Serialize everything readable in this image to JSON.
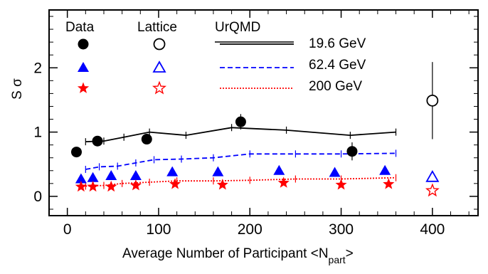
{
  "chart_data": {
    "type": "scatter",
    "title": "",
    "xlabel": "Average Number of Participant <N",
    "xlabel_sub": "part",
    "xlabel_end": ">",
    "ylabel": "S σ",
    "xlim": [
      -20,
      450
    ],
    "ylim": [
      -0.3,
      2.9
    ],
    "x_ticks": [
      0,
      100,
      200,
      300,
      400
    ],
    "y_ticks": [
      0,
      1,
      2
    ],
    "legend": {
      "placement": "top-left",
      "headers": {
        "data": "Data",
        "lattice": "Lattice",
        "urqmd": "UrQMD"
      },
      "energies": [
        "19.6 GeV",
        "62.4 GeV",
        "200 GeV"
      ]
    },
    "colors": {
      "e19": "#000000",
      "e62": "#0000ff",
      "e200": "#ff0000"
    },
    "series": [
      {
        "name": "19.6 GeV",
        "kind": "data",
        "marker": "circle",
        "x": [
          10,
          33,
          87,
          190,
          312
        ],
        "y": [
          0.69,
          0.86,
          0.89,
          1.16,
          0.7
        ],
        "err": [
          0.05,
          0.04,
          0.05,
          0.12,
          0.14
        ]
      },
      {
        "name": "62.4 GeV",
        "kind": "data",
        "marker": "triangle",
        "x": [
          15,
          28,
          48,
          75,
          115,
          165,
          232,
          293,
          348
        ],
        "y": [
          0.27,
          0.29,
          0.32,
          0.32,
          0.38,
          0.38,
          0.4,
          0.37,
          0.4
        ],
        "err": [
          0.02,
          0.02,
          0.02,
          0.02,
          0.02,
          0.02,
          0.03,
          0.03,
          0.05
        ]
      },
      {
        "name": "200 GeV",
        "kind": "data",
        "marker": "star",
        "x": [
          15,
          28,
          48,
          75,
          118,
          170,
          237,
          300,
          352
        ],
        "y": [
          0.15,
          0.15,
          0.15,
          0.17,
          0.19,
          0.18,
          0.21,
          0.18,
          0.19
        ],
        "err": [
          0.01,
          0.01,
          0.01,
          0.01,
          0.01,
          0.01,
          0.01,
          0.02,
          0.02
        ]
      },
      {
        "name": "19.6 GeV",
        "kind": "lattice",
        "marker": "circle-open",
        "x": [
          400
        ],
        "y": [
          1.49
        ],
        "err": [
          0.6
        ]
      },
      {
        "name": "62.4 GeV",
        "kind": "lattice",
        "marker": "triangle-open",
        "x": [
          400
        ],
        "y": [
          0.3
        ],
        "err": [
          0
        ]
      },
      {
        "name": "200 GeV",
        "kind": "lattice",
        "marker": "star-open",
        "x": [
          400
        ],
        "y": [
          0.09
        ],
        "err": [
          0
        ]
      },
      {
        "name": "19.6 GeV",
        "kind": "urqmd",
        "line": "solid",
        "x": [
          20,
          40,
          62,
          90,
          130,
          180,
          240,
          310,
          360
        ],
        "y": [
          0.85,
          0.86,
          0.92,
          1.0,
          0.95,
          1.07,
          1.03,
          0.95,
          1.0
        ]
      },
      {
        "name": "62.4 GeV",
        "kind": "urqmd",
        "line": "dashed",
        "x": [
          20,
          35,
          55,
          75,
          95,
          125,
          160,
          200,
          250,
          300,
          360
        ],
        "y": [
          0.42,
          0.46,
          0.47,
          0.52,
          0.57,
          0.58,
          0.6,
          0.66,
          0.66,
          0.66,
          0.67
        ]
      },
      {
        "name": "200 GeV",
        "kind": "urqmd",
        "line": "dotted",
        "x": [
          20,
          40,
          60,
          90,
          120,
          160,
          200,
          250,
          300,
          360
        ],
        "y": [
          0.16,
          0.17,
          0.2,
          0.22,
          0.24,
          0.24,
          0.25,
          0.27,
          0.27,
          0.29
        ]
      }
    ]
  }
}
